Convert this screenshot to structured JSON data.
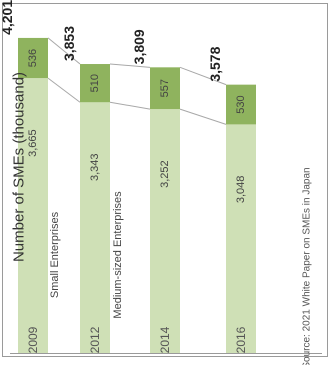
{
  "chart_data": {
    "type": "bar",
    "orientation": "stacked-horizontal-rotated",
    "ylabel": "Number of SMEs (thousand)",
    "categories": [
      "2009",
      "2012",
      "2014",
      "2016"
    ],
    "series": [
      {
        "name": "Medium-sized Enterprises",
        "values": [
          3665,
          3343,
          3252,
          3048
        ],
        "color": "#cfe0b6"
      },
      {
        "name": "Small Enterprises",
        "values": [
          536,
          510,
          557,
          530
        ],
        "color": "#8fb35e"
      }
    ],
    "totals": [
      "4,201",
      "3,853",
      "3,809",
      "3,578"
    ],
    "data_labels": {
      "medium": [
        "3,665",
        "3,343",
        "3,252",
        "3,048"
      ],
      "small": [
        "536",
        "510",
        "557",
        "530"
      ]
    },
    "source": "Source: 2021 White Paper on SMEs in Japan",
    "grid": false,
    "legend": "inline"
  }
}
